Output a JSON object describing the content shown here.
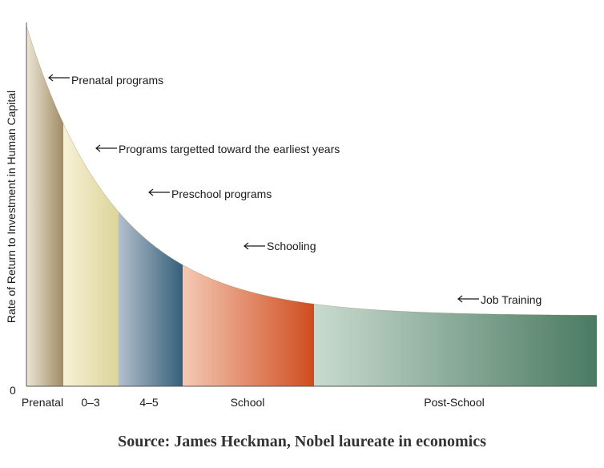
{
  "chart_data": {
    "type": "area",
    "ylabel": "Rate of Return to Investment in Human Capital",
    "y_origin_label": "0",
    "segments": [
      {
        "name": "Prenatal",
        "color_light": "#ede6d4",
        "color_dark": "#a08c66"
      },
      {
        "name": "0–3",
        "color_light": "#f7f1d6",
        "color_dark": "#ddd498"
      },
      {
        "name": "4–5",
        "color_light": "#b3bfcc",
        "color_dark": "#35607a"
      },
      {
        "name": "School",
        "color_light": "#f5c9b4",
        "color_dark": "#cf4d1f"
      },
      {
        "name": "Post-School",
        "color_light": "#c9dbcf",
        "color_dark": "#4a7a62"
      }
    ],
    "annotations": [
      {
        "text": "Prenatal programs",
        "segment": 0
      },
      {
        "text": "Programs targetted toward the earliest years",
        "segment": 1
      },
      {
        "text": "Preschool programs",
        "segment": 2
      },
      {
        "text": "Schooling",
        "segment": 3
      },
      {
        "text": "Job Training",
        "segment": 4
      }
    ]
  },
  "source": "Source:  James Heckman, Nobel laureate in economics"
}
